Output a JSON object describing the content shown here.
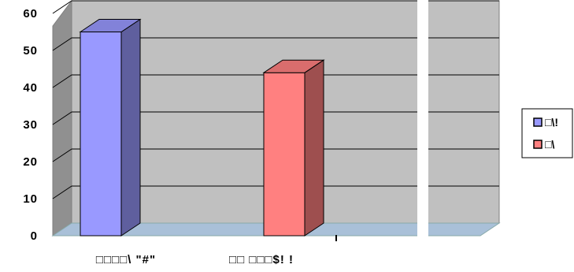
{
  "chart_data": {
    "type": "bar",
    "title": "",
    "xlabel": "",
    "ylabel": "",
    "ylim": [
      0,
      60
    ],
    "yticks": [
      "0",
      "10",
      "20",
      "30",
      "40",
      "50",
      "60"
    ],
    "categories": [
      "□□□□\\ \"#\"",
      "□□ □□□$! !"
    ],
    "series": [
      {
        "name": "□\\!",
        "color": "#9999ff",
        "values": [
          55,
          null
        ]
      },
      {
        "name": "□\\",
        "color": "#ff8080",
        "values": [
          null,
          44
        ]
      }
    ],
    "grid": true,
    "legend_position": "right",
    "style": "3d-column"
  }
}
